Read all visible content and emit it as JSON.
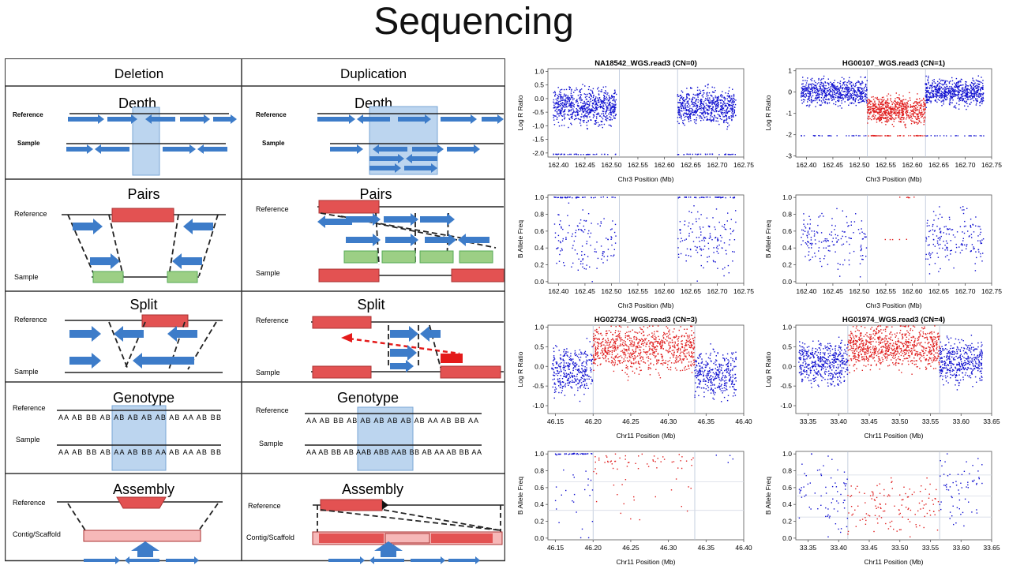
{
  "slide": {
    "title": "Sequencing"
  },
  "table": {
    "headers": [
      "Deletion",
      "Duplication"
    ],
    "rows": [
      {
        "name": "Depth",
        "del": {
          "labels": [
            "Reference",
            "Sample"
          ]
        },
        "dup": {
          "labels": [
            "Reference",
            "Sample"
          ]
        }
      },
      {
        "name": "Pairs",
        "del": {
          "labels": [
            "Reference",
            "Sample"
          ]
        },
        "dup": {
          "labels": [
            "Reference",
            "Sample"
          ]
        }
      },
      {
        "name": "Split",
        "del": {
          "labels": [
            "Reference",
            "Sample"
          ]
        },
        "dup": {
          "labels": [
            "Reference",
            "Sample"
          ]
        }
      },
      {
        "name": "Genotype",
        "del": {
          "labels": [
            "Reference",
            "Sample"
          ],
          "ref_gt": "AA AB BB AB AB AB AB AB AB AA AB BB",
          "sam_gt": "AA AB BB AB AA AB BB AA AB AA AB BB"
        },
        "dup": {
          "labels": [
            "Reference",
            "Sample"
          ],
          "ref_gt": "AA AB BB AB AB AB AB AB AB AA AB BB AA",
          "sam_gt": "AA AB BB AB AAB ABB AAB BB AB AA AB BB AA"
        }
      },
      {
        "name": "Assembly",
        "del": {
          "labels": [
            "Reference",
            "Contig/Scaffold"
          ]
        },
        "dup": {
          "labels": [
            "Reference",
            "Contig/Scaffold"
          ]
        }
      }
    ]
  },
  "chart_data": [
    {
      "type": "scatter",
      "title": "NA18542_WGS.read3 (CN=0)",
      "xlabel": "Chr3 Position (Mb)",
      "ylabel": "Log R Ratio",
      "xlim": [
        162.38,
        162.75
      ],
      "ylim": [
        -2.15,
        1.1
      ],
      "xticks": [
        "162.40",
        "162.45",
        "162.50",
        "162.55",
        "162.60",
        "162.65",
        "162.70",
        "162.75"
      ],
      "yticks": [
        "1.0",
        "0.5",
        "0.0",
        "-0.5",
        "-1.0",
        "-1.5",
        "-2.0"
      ],
      "series": [
        {
          "color": "#1010d0",
          "x_range": [
            162.39,
            162.51
          ],
          "y_center": -0.3,
          "y_spread": 0.55,
          "n": 700
        },
        {
          "color": "#1010d0",
          "x_range": [
            162.625,
            162.735
          ],
          "y_center": -0.3,
          "y_spread": 0.55,
          "n": 650
        },
        {
          "color": "#1010d0",
          "x_range": [
            162.39,
            162.51
          ],
          "y_center": -2.05,
          "y_spread": 0.01,
          "n": 40
        },
        {
          "color": "#1010d0",
          "x_range": [
            162.625,
            162.735
          ],
          "y_center": -2.05,
          "y_spread": 0.01,
          "n": 40
        }
      ],
      "vlines": [
        162.515,
        162.625
      ]
    },
    {
      "type": "scatter",
      "title": "HG00107_WGS.read3 (CN=1)",
      "xlabel": "Chr3 Position (Mb)",
      "ylabel": "Log R Ratio",
      "xlim": [
        162.38,
        162.75
      ],
      "ylim": [
        -3.05,
        1.1
      ],
      "xticks": [
        "162.40",
        "162.45",
        "162.50",
        "162.55",
        "162.60",
        "162.65",
        "162.70",
        "162.75"
      ],
      "yticks": [
        "1",
        "0",
        "-1",
        "-2",
        "-3"
      ],
      "series": [
        {
          "color": "#1010d0",
          "x_range": [
            162.39,
            162.515
          ],
          "y_center": 0,
          "y_spread": 0.5,
          "n": 650
        },
        {
          "color": "#e02020",
          "x_range": [
            162.515,
            162.625
          ],
          "y_center": -0.85,
          "y_spread": 0.55,
          "n": 700
        },
        {
          "color": "#1010d0",
          "x_range": [
            162.625,
            162.735
          ],
          "y_center": 0,
          "y_spread": 0.5,
          "n": 650
        },
        {
          "color": "#e02020",
          "x_range": [
            162.515,
            162.625
          ],
          "y_center": -2.05,
          "y_spread": 0.01,
          "n": 60
        },
        {
          "color": "#1010d0",
          "x_range": [
            162.39,
            162.515
          ],
          "y_center": -2.05,
          "y_spread": 0.01,
          "n": 25
        },
        {
          "color": "#1010d0",
          "x_range": [
            162.625,
            162.735
          ],
          "y_center": -2.05,
          "y_spread": 0.01,
          "n": 25
        }
      ],
      "vlines": [
        162.515,
        162.625
      ]
    },
    {
      "type": "scatter",
      "title": "",
      "xlabel": "Chr3 Position (Mb)",
      "ylabel": "B Allele Freq",
      "xlim": [
        162.38,
        162.75
      ],
      "ylim": [
        -0.02,
        1.03
      ],
      "xticks": [
        "162.40",
        "162.45",
        "162.50",
        "162.55",
        "162.60",
        "162.65",
        "162.70",
        "162.75"
      ],
      "yticks": [
        "1.0",
        "0.8",
        "0.6",
        "0.4",
        "0.2",
        "0.0"
      ],
      "series": [
        {
          "color": "#1010d0",
          "x_range": [
            162.39,
            162.51
          ],
          "y_center": 0.5,
          "y_spread": 0.35,
          "n": 130
        },
        {
          "color": "#1010d0",
          "x_range": [
            162.625,
            162.735
          ],
          "y_center": 0.5,
          "y_spread": 0.35,
          "n": 140
        },
        {
          "color": "#1010d0",
          "x_range": [
            162.39,
            162.51
          ],
          "y_center": 1.0,
          "y_spread": 0.005,
          "n": 40
        },
        {
          "color": "#1010d0",
          "x_range": [
            162.625,
            162.735
          ],
          "y_center": 1.0,
          "y_spread": 0.005,
          "n": 40
        }
      ],
      "vlines": [
        162.515,
        162.625
      ]
    },
    {
      "type": "scatter",
      "title": "",
      "xlabel": "Chr3 Position (Mb)",
      "ylabel": "B Allele Freq",
      "xlim": [
        162.38,
        162.75
      ],
      "ylim": [
        -0.02,
        1.03
      ],
      "xticks": [
        "162.40",
        "162.45",
        "162.50",
        "162.55",
        "162.60",
        "162.65",
        "162.70",
        "162.75"
      ],
      "yticks": [
        "1.0",
        "0.8",
        "0.6",
        "0.4",
        "0.2",
        "0.0"
      ],
      "series": [
        {
          "color": "#1010d0",
          "x_range": [
            162.39,
            162.515
          ],
          "y_center": 0.5,
          "y_spread": 0.3,
          "n": 160
        },
        {
          "color": "#1010d0",
          "x_range": [
            162.625,
            162.735
          ],
          "y_center": 0.5,
          "y_spread": 0.3,
          "n": 170
        },
        {
          "color": "#e02020",
          "x_range": [
            162.545,
            162.6
          ],
          "y_center": 0.5,
          "y_spread": 0.005,
          "n": 5
        },
        {
          "color": "#e02020",
          "x_range": [
            162.52,
            162.62
          ],
          "y_center": 1.0,
          "y_spread": 0.005,
          "n": 6
        }
      ],
      "vlines": [
        162.515,
        162.625
      ]
    },
    {
      "type": "scatter",
      "title": "HG02734_WGS.read3 (CN=3)",
      "xlabel": "Chr11 Position (Mb)",
      "ylabel": "Log R Ratio",
      "xlim": [
        46.14,
        46.4
      ],
      "ylim": [
        -1.2,
        1.05
      ],
      "xticks": [
        "46.15",
        "46.20",
        "46.25",
        "46.30",
        "46.35",
        "46.40"
      ],
      "yticks": [
        "1.0",
        "0.5",
        "0.0",
        "-0.5",
        "-1.0"
      ],
      "series": [
        {
          "color": "#1010d0",
          "x_range": [
            46.145,
            46.2
          ],
          "y_center": -0.1,
          "y_spread": 0.5,
          "n": 350
        },
        {
          "color": "#e02020",
          "x_range": [
            46.2,
            46.335
          ],
          "y_center": 0.45,
          "y_spread": 0.5,
          "n": 850
        },
        {
          "color": "#1010d0",
          "x_range": [
            46.335,
            46.39
          ],
          "y_center": -0.2,
          "y_spread": 0.5,
          "n": 350
        }
      ],
      "vlines": [
        46.2,
        46.335
      ]
    },
    {
      "type": "scatter",
      "title": "HG01974_WGS.read3 (CN=4)",
      "xlabel": "Chr11 Position (Mb)",
      "ylabel": "Log R Ratio",
      "xlim": [
        33.33,
        33.65
      ],
      "ylim": [
        -1.2,
        1.05
      ],
      "xticks": [
        "33.35",
        "33.40",
        "33.45",
        "33.50",
        "33.55",
        "33.60",
        "33.65"
      ],
      "yticks": [
        "1.0",
        "0.5",
        "0.0",
        "-0.5",
        "-1.0"
      ],
      "series": [
        {
          "color": "#1010d0",
          "x_range": [
            33.335,
            33.415
          ],
          "y_center": 0.1,
          "y_spread": 0.45,
          "n": 450
        },
        {
          "color": "#e02020",
          "x_range": [
            33.415,
            33.565
          ],
          "y_center": 0.5,
          "y_spread": 0.45,
          "n": 850
        },
        {
          "color": "#1010d0",
          "x_range": [
            33.565,
            33.635
          ],
          "y_center": 0.1,
          "y_spread": 0.45,
          "n": 400
        }
      ],
      "vlines": [
        33.415,
        33.565
      ]
    },
    {
      "type": "scatter",
      "title": "",
      "xlabel": "Chr11 Position (Mb)",
      "ylabel": "B Allele Freq",
      "xlim": [
        46.14,
        46.4
      ],
      "ylim": [
        -0.02,
        1.03
      ],
      "xticks": [
        "46.15",
        "46.20",
        "46.25",
        "46.30",
        "46.35",
        "46.40"
      ],
      "yticks": [
        "1.0",
        "0.8",
        "0.6",
        "0.4",
        "0.2",
        "0.0"
      ],
      "series": [
        {
          "color": "#1010d0",
          "x_range": [
            46.15,
            46.2
          ],
          "y_center": 1.0,
          "y_spread": 0.005,
          "n": 35
        },
        {
          "color": "#1010d0",
          "x_range": [
            46.15,
            46.2
          ],
          "y_center": 0.55,
          "y_spread": 0.45,
          "n": 25
        },
        {
          "color": "#e02020",
          "x_range": [
            46.2,
            46.335
          ],
          "y_center": 0.9,
          "y_spread": 0.1,
          "n": 50
        },
        {
          "color": "#e02020",
          "x_range": [
            46.2,
            46.335
          ],
          "y_center": 0.5,
          "y_spread": 0.3,
          "n": 20
        },
        {
          "color": "#1010d0",
          "x_range": [
            46.335,
            46.39
          ],
          "y_center": 0.95,
          "y_spread": 0.05,
          "n": 4
        }
      ],
      "hlines": [
        0.33,
        0.67
      ],
      "vlines": [
        46.2,
        46.335
      ]
    },
    {
      "type": "scatter",
      "title": "",
      "xlabel": "Chr11 Position (Mb)",
      "ylabel": "B Allele Freq",
      "xlim": [
        33.33,
        33.65
      ],
      "ylim": [
        -0.02,
        1.03
      ],
      "xticks": [
        "33.35",
        "33.40",
        "33.45",
        "33.50",
        "33.55",
        "33.60",
        "33.65"
      ],
      "yticks": [
        "1.0",
        "0.8",
        "0.6",
        "0.4",
        "0.2",
        "0.0"
      ],
      "series": [
        {
          "color": "#1010d0",
          "x_range": [
            33.335,
            33.415
          ],
          "y_center": 0.55,
          "y_spread": 0.45,
          "n": 70
        },
        {
          "color": "#e02020",
          "x_range": [
            33.415,
            33.565
          ],
          "y_center": 0.4,
          "y_spread": 0.3,
          "n": 130
        },
        {
          "color": "#1010d0",
          "x_range": [
            33.565,
            33.635
          ],
          "y_center": 0.55,
          "y_spread": 0.4,
          "n": 65
        }
      ],
      "hlines": [
        0.25,
        0.5,
        0.75
      ],
      "vlines": [
        33.415,
        33.565
      ]
    }
  ]
}
